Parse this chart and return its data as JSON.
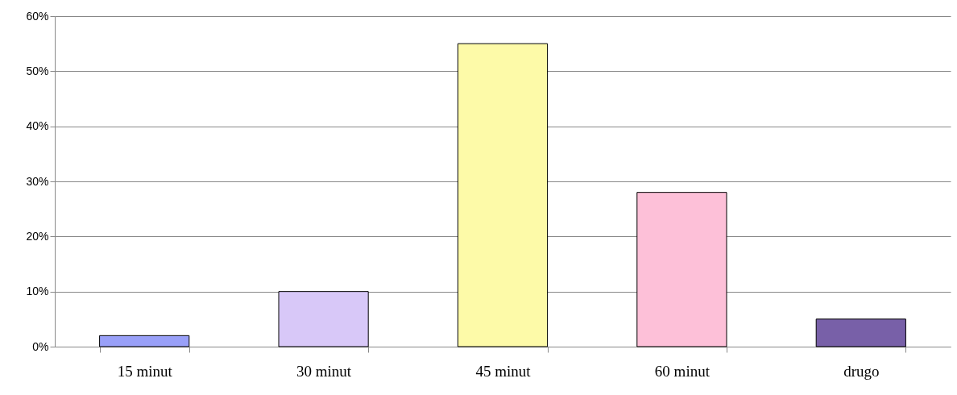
{
  "chart_data": {
    "type": "bar",
    "categories": [
      "15 minut",
      "30 minut",
      "45 minut",
      "60 minut",
      "drugo"
    ],
    "values": [
      2,
      10,
      55,
      28,
      5
    ],
    "colors": [
      "#99a0f8",
      "#d8c8f8",
      "#fdfaa8",
      "#fdc0d8",
      "#7860a8"
    ],
    "ylim": [
      0,
      60
    ],
    "yticks": [
      {
        "value": 0,
        "label": "0%"
      },
      {
        "value": 10,
        "label": "10%"
      },
      {
        "value": 20,
        "label": "20%"
      },
      {
        "value": 30,
        "label": "30%"
      },
      {
        "value": 40,
        "label": "40%"
      },
      {
        "value": 50,
        "label": "50%"
      },
      {
        "value": 60,
        "label": "60%"
      }
    ],
    "grid": "y"
  }
}
